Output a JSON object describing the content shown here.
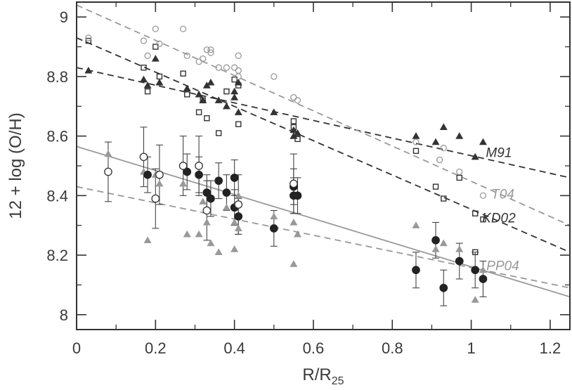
{
  "chart_data": {
    "type": "scatter",
    "xlabel": "R/R",
    "xlabel_sub": "25",
    "ylabel": "12 + log (O/H)",
    "xlim": [
      0,
      1.25
    ],
    "ylim": [
      7.95,
      9.05
    ],
    "x_ticks": [
      0,
      0.2,
      0.4,
      0.6,
      0.8,
      1,
      1.2
    ],
    "x_tick_labels": [
      "0",
      "0.2",
      "0.4",
      "0.6",
      "0.8",
      "1",
      "1.2"
    ],
    "y_ticks": [
      8,
      8.2,
      8.4,
      8.6,
      8.8,
      9
    ],
    "y_tick_labels": [
      "8",
      "8.2",
      "8.4",
      "8.6",
      "8.8",
      "9"
    ],
    "grid": false,
    "colors": {
      "dark": "#333333",
      "light": "#999999",
      "axis": "#333333"
    },
    "fits": [
      {
        "label": "M91",
        "x0": 0,
        "y0": 8.83,
        "x1": 1.25,
        "y1": 8.46,
        "color": "#333333",
        "dashed": true,
        "label_x": 1.07,
        "label_y": 8.53
      },
      {
        "label": "T04",
        "x0": 0,
        "y0": 9.04,
        "x1": 1.25,
        "y1": 8.3,
        "color": "#999999",
        "dashed": true,
        "label_x": 1.08,
        "label_y": 8.39
      },
      {
        "label": "KD02",
        "x0": 0,
        "y0": 8.93,
        "x1": 1.25,
        "y1": 8.21,
        "color": "#333333",
        "dashed": true,
        "label_x": 1.07,
        "label_y": 8.31
      },
      {
        "label": "PP04",
        "x0": 0,
        "y0": 8.43,
        "x1": 1.25,
        "y1": 8.09,
        "color": "#999999",
        "dashed": true,
        "label_x": 1.08,
        "label_y": 8.15
      },
      {
        "label": "",
        "x0": 0,
        "y0": 8.565,
        "x1": 1.25,
        "y1": 8.06,
        "color": "#999999",
        "dashed": false
      }
    ],
    "series": [
      {
        "marker": "triangle",
        "fill": "#333333",
        "points": [
          [
            0.03,
            8.82
          ],
          [
            0.17,
            8.79
          ],
          [
            0.18,
            8.77
          ],
          [
            0.2,
            8.86
          ],
          [
            0.21,
            8.78
          ],
          [
            0.28,
            8.76
          ],
          [
            0.31,
            8.74
          ],
          [
            0.32,
            8.72
          ],
          [
            0.33,
            8.77
          ],
          [
            0.34,
            8.78
          ],
          [
            0.36,
            8.72
          ],
          [
            0.38,
            8.7
          ],
          [
            0.4,
            8.73
          ],
          [
            0.4,
            8.75
          ],
          [
            0.41,
            8.78
          ],
          [
            0.41,
            8.68
          ],
          [
            0.5,
            8.68
          ],
          [
            0.55,
            8.6
          ],
          [
            0.55,
            8.62
          ],
          [
            0.56,
            8.61
          ],
          [
            0.86,
            8.6
          ],
          [
            0.91,
            8.58
          ],
          [
            0.93,
            8.63
          ],
          [
            0.97,
            8.6
          ],
          [
            1.01,
            8.53
          ],
          [
            1.03,
            8.58
          ]
        ]
      },
      {
        "marker": "square",
        "fill": "none",
        "stroke": "#333333",
        "points": [
          [
            0.03,
            8.92
          ],
          [
            0.17,
            8.83
          ],
          [
            0.18,
            8.75
          ],
          [
            0.2,
            8.9
          ],
          [
            0.21,
            8.8
          ],
          [
            0.27,
            8.81
          ],
          [
            0.28,
            8.74
          ],
          [
            0.31,
            8.68
          ],
          [
            0.32,
            8.72
          ],
          [
            0.33,
            8.66
          ],
          [
            0.36,
            8.61
          ],
          [
            0.38,
            8.75
          ],
          [
            0.4,
            8.79
          ],
          [
            0.41,
            8.64
          ],
          [
            0.41,
            8.77
          ],
          [
            0.55,
            8.63
          ],
          [
            0.55,
            8.65
          ],
          [
            0.56,
            8.59
          ],
          [
            0.86,
            8.55
          ],
          [
            0.91,
            8.43
          ],
          [
            0.93,
            8.39
          ],
          [
            0.97,
            8.46
          ],
          [
            1.01,
            8.34
          ],
          [
            1.03,
            8.32
          ],
          [
            1.01,
            8.21
          ]
        ]
      },
      {
        "marker": "circle",
        "fill": "none",
        "stroke": "#999999",
        "points": [
          [
            0.03,
            8.93
          ],
          [
            0.17,
            8.92
          ],
          [
            0.18,
            8.87
          ],
          [
            0.2,
            8.96
          ],
          [
            0.21,
            8.91
          ],
          [
            0.27,
            8.96
          ],
          [
            0.28,
            8.87
          ],
          [
            0.31,
            8.85
          ],
          [
            0.32,
            8.86
          ],
          [
            0.33,
            8.89
          ],
          [
            0.34,
            8.88
          ],
          [
            0.34,
            8.89
          ],
          [
            0.36,
            8.83
          ],
          [
            0.38,
            8.83
          ],
          [
            0.4,
            8.83
          ],
          [
            0.41,
            8.82
          ],
          [
            0.41,
            8.87
          ],
          [
            0.41,
            8.8
          ],
          [
            0.5,
            8.8
          ],
          [
            0.55,
            8.73
          ],
          [
            0.56,
            8.72
          ],
          [
            0.86,
            8.58
          ],
          [
            0.92,
            8.52
          ],
          [
            0.93,
            8.56
          ],
          [
            0.97,
            8.48
          ],
          [
            1.03,
            8.4
          ]
        ]
      },
      {
        "marker": "triangle",
        "fill": "#999999",
        "points": [
          [
            0.08,
            8.54
          ],
          [
            0.17,
            8.48
          ],
          [
            0.18,
            8.25
          ],
          [
            0.2,
            8.47
          ],
          [
            0.21,
            8.44
          ],
          [
            0.27,
            8.44
          ],
          [
            0.28,
            8.27
          ],
          [
            0.31,
            8.27
          ],
          [
            0.32,
            8.38
          ],
          [
            0.33,
            8.31
          ],
          [
            0.34,
            8.24
          ],
          [
            0.36,
            8.21
          ],
          [
            0.38,
            8.36
          ],
          [
            0.4,
            8.22
          ],
          [
            0.4,
            8.31
          ],
          [
            0.41,
            8.29
          ],
          [
            0.41,
            8.4
          ],
          [
            0.5,
            8.33
          ],
          [
            0.55,
            8.17
          ],
          [
            0.55,
            8.31
          ],
          [
            0.56,
            8.27
          ],
          [
            0.86,
            8.3
          ],
          [
            0.91,
            8.22
          ],
          [
            0.93,
            8.24
          ],
          [
            0.97,
            8.22
          ],
          [
            1.01,
            8.05
          ],
          [
            1.03,
            8.15
          ]
        ]
      },
      {
        "marker": "circle",
        "fill": "#222222",
        "err": 0.06,
        "points": [
          [
            0.18,
            8.47
          ],
          [
            0.28,
            8.48
          ],
          [
            0.31,
            8.47
          ],
          [
            0.33,
            8.41
          ],
          [
            0.34,
            8.39
          ],
          [
            0.36,
            8.45
          ],
          [
            0.38,
            8.41
          ],
          [
            0.4,
            8.36
          ],
          [
            0.4,
            8.46
          ],
          [
            0.41,
            8.33
          ],
          [
            0.5,
            8.29
          ],
          [
            0.55,
            8.43
          ],
          [
            0.55,
            8.4
          ],
          [
            0.56,
            8.4
          ],
          [
            0.86,
            8.15
          ],
          [
            0.91,
            8.25
          ],
          [
            0.93,
            8.09
          ],
          [
            0.97,
            8.18
          ],
          [
            1.01,
            8.15
          ],
          [
            1.03,
            8.12
          ]
        ]
      },
      {
        "marker": "circle",
        "fill": "#ffffff",
        "stroke": "#333333",
        "err": 0.1,
        "points": [
          [
            0.08,
            8.48
          ],
          [
            0.17,
            8.53
          ],
          [
            0.2,
            8.39
          ],
          [
            0.21,
            8.47
          ],
          [
            0.27,
            8.5
          ],
          [
            0.31,
            8.5
          ],
          [
            0.33,
            8.35
          ],
          [
            0.41,
            8.37
          ],
          [
            0.55,
            8.44
          ]
        ]
      }
    ]
  }
}
